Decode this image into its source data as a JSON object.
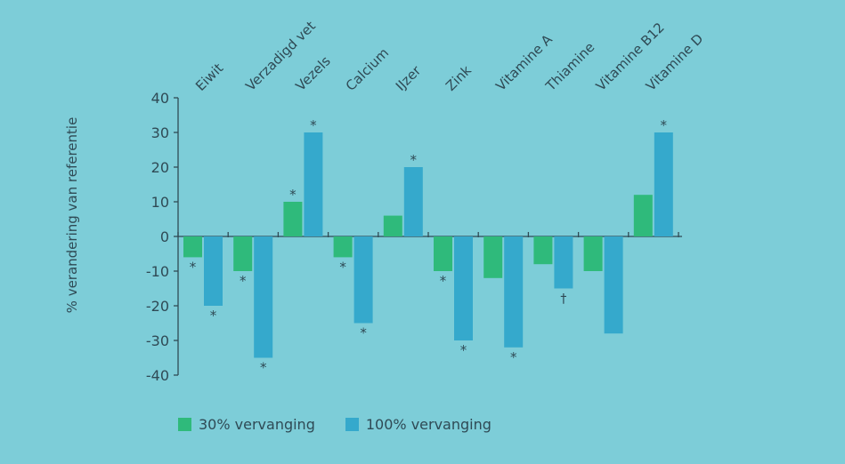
{
  "chart_data": {
    "type": "bar",
    "ylabel": "% verandering van referentie",
    "ylim": [
      -40,
      40
    ],
    "yticks": [
      40,
      30,
      20,
      10,
      0,
      -10,
      -20,
      -30,
      -40
    ],
    "categories": [
      "Eiwit",
      "Verzadigd vet",
      "Vezels",
      "Calcium",
      "IJzer",
      "Zink",
      "Vitamine A",
      "Thiamine",
      "Vitamine B12",
      "Vitamine D"
    ],
    "series": [
      {
        "name": "30% vervanging",
        "color": "#2fba7b",
        "values": [
          -6,
          -10,
          10,
          -6,
          6,
          -10,
          -12,
          -8,
          -10,
          12
        ],
        "markers": [
          "*",
          "*",
          "*",
          "*",
          "",
          "*",
          "",
          "",
          "",
          ""
        ]
      },
      {
        "name": "100% vervanging",
        "color": "#35a9cc",
        "values": [
          -20,
          -35,
          30,
          -25,
          20,
          -30,
          -32,
          -15,
          -28,
          30
        ],
        "markers": [
          "*",
          "*",
          "*",
          "*",
          "*",
          "*",
          "*",
          "†",
          "",
          "*"
        ]
      }
    ],
    "legend_position": "bottom-left",
    "grid": false
  },
  "legend": {
    "items": [
      {
        "label": "30% vervanging",
        "color": "#2fba7b"
      },
      {
        "label": "100% vervanging",
        "color": "#35a9cc"
      }
    ]
  }
}
